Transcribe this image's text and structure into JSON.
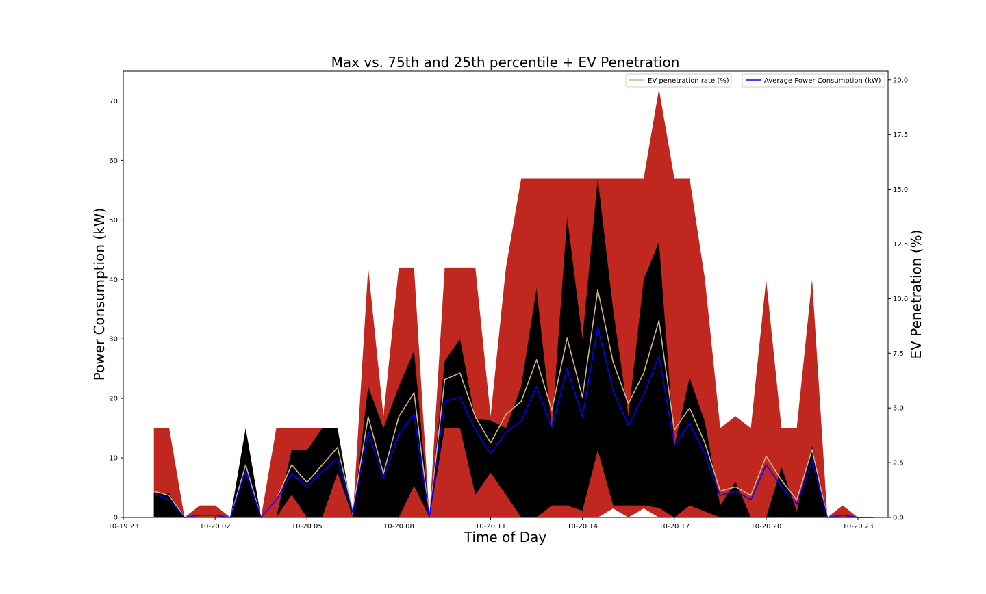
{
  "chart_data": {
    "type": "area",
    "title": "Max vs. 75th and 25th percentile + EV Penetration",
    "xlabel": "Time of Day",
    "ylabel": "Power Consumption (kW)",
    "y2label": "EV Penetration (%)",
    "ylim": [
      0,
      75
    ],
    "y2lim": [
      0,
      20.4
    ],
    "xlim": [
      "2023-10-19T23:00",
      "2023-10-20T23:59"
    ],
    "x_ticks": [
      "10-19 23",
      "10-20 02",
      "10-20 05",
      "10-20 08",
      "10-20 11",
      "10-20 14",
      "10-20 17",
      "10-20 20",
      "10-20 23"
    ],
    "y_ticks": [
      0,
      10,
      20,
      30,
      40,
      50,
      60,
      70
    ],
    "y2_ticks": [
      "0.0",
      "2.5",
      "5.0",
      "7.5",
      "10.0",
      "12.5",
      "15.0",
      "17.5",
      "20.0"
    ],
    "grid": false,
    "legend_position": "top-right",
    "x": [
      "10-20 00:00",
      "10-20 00:30",
      "10-20 01:00",
      "10-20 01:30",
      "10-20 02:00",
      "10-20 02:30",
      "10-20 03:00",
      "10-20 03:30",
      "10-20 04:00",
      "10-20 04:30",
      "10-20 05:00",
      "10-20 05:30",
      "10-20 06:00",
      "10-20 06:30",
      "10-20 07:00",
      "10-20 07:30",
      "10-20 08:00",
      "10-20 08:30",
      "10-20 09:00",
      "10-20 09:30",
      "10-20 10:00",
      "10-20 10:30",
      "10-20 11:00",
      "10-20 11:30",
      "10-20 12:00",
      "10-20 12:30",
      "10-20 13:00",
      "10-20 13:30",
      "10-20 14:00",
      "10-20 14:30",
      "10-20 15:00",
      "10-20 15:30",
      "10-20 16:00",
      "10-20 16:30",
      "10-20 17:00",
      "10-20 17:30",
      "10-20 18:00",
      "10-20 18:30",
      "10-20 19:00",
      "10-20 19:30",
      "10-20 20:00",
      "10-20 20:30",
      "10-20 21:00",
      "10-20 21:30",
      "10-20 22:00",
      "10-20 22:30",
      "10-20 23:00",
      "10-20 23:30"
    ],
    "series": [
      {
        "axis": "left",
        "color": "#c0281f",
        "values": [
          15,
          15,
          0,
          2,
          2,
          0,
          0,
          0,
          15,
          15,
          15,
          15,
          15,
          0,
          42,
          17,
          42,
          42,
          0,
          42,
          42,
          42,
          17,
          42,
          57,
          57,
          57,
          57,
          57,
          57,
          57,
          57,
          57,
          72,
          57,
          57,
          40,
          15,
          17,
          15,
          40,
          15,
          15,
          40,
          0,
          2,
          0,
          0
        ]
      },
      {
        "axis": "left",
        "color": "#000000",
        "values": [
          4,
          4,
          0,
          0,
          0,
          0,
          15,
          0,
          0,
          11.3,
          11.3,
          15,
          15,
          0,
          22,
          15,
          22,
          28,
          0,
          26.3,
          30,
          16.5,
          16.3,
          15,
          22,
          38.5,
          15,
          50.5,
          30,
          57,
          35,
          17,
          40,
          46.3,
          12,
          23.5,
          16,
          2,
          6,
          0,
          0,
          8.5,
          1,
          12,
          0,
          0,
          0,
          0
        ]
      },
      {
        "axis": "left",
        "color": "#c0281f",
        "values": [
          0,
          0,
          0,
          0,
          0,
          0,
          0,
          0,
          0,
          3.8,
          0,
          0,
          7.5,
          0,
          0,
          0,
          0,
          5.3,
          0,
          15,
          15,
          3.8,
          7.5,
          3.8,
          0,
          0,
          2,
          2,
          1.1,
          11.3,
          2,
          2,
          2,
          1.6,
          0,
          2,
          1,
          0,
          0,
          0,
          0,
          0,
          0,
          0,
          0,
          0,
          0,
          0
        ]
      },
      {
        "axis": "left",
        "color": "#ffffff",
        "values": [
          0,
          0,
          0,
          0,
          0,
          0,
          0,
          0,
          0,
          0,
          0,
          0,
          0,
          0,
          0,
          0,
          0,
          0,
          0,
          0,
          0,
          0,
          0,
          0,
          0,
          0,
          0,
          0,
          0,
          0,
          1.5,
          0,
          1.5,
          0,
          0,
          0,
          0,
          0,
          0,
          0,
          0,
          0,
          0,
          0,
          0,
          0,
          0,
          0
        ]
      },
      {
        "name": "EV penetration rate (%)",
        "axis": "right",
        "color": "#d2b48c",
        "values": [
          1.2,
          1,
          0,
          0.1,
          0.1,
          0,
          2.4,
          0,
          0.8,
          2.4,
          1.6,
          2.4,
          3.2,
          0.3,
          4.6,
          2,
          4.6,
          5.7,
          0,
          6.3,
          6.6,
          4.6,
          3.4,
          4.7,
          5.3,
          7.2,
          4.9,
          8.2,
          5.5,
          10.4,
          7.1,
          5.2,
          6.6,
          9,
          4,
          5,
          3.4,
          1.2,
          1.4,
          1,
          2.8,
          1.7,
          0.8,
          3.1,
          0,
          0,
          0,
          0
        ]
      },
      {
        "name": "Average Power Consumption (kW)",
        "axis": "right",
        "color": "#0000ff",
        "values": [
          1.1,
          0.8,
          0,
          0.1,
          0.1,
          0,
          2.1,
          0,
          0.8,
          2,
          1.4,
          2.1,
          2.7,
          0.2,
          3.9,
          1.8,
          3.8,
          4.7,
          0,
          5.3,
          5.5,
          4,
          2.9,
          3.9,
          4.4,
          6,
          4.1,
          6.8,
          4.6,
          8.7,
          5.8,
          4.2,
          5.6,
          7.4,
          3.3,
          4.3,
          2.9,
          1,
          1.2,
          0.8,
          2.4,
          1.4,
          0.6,
          2.6,
          0,
          0.1,
          0,
          0
        ]
      }
    ]
  }
}
